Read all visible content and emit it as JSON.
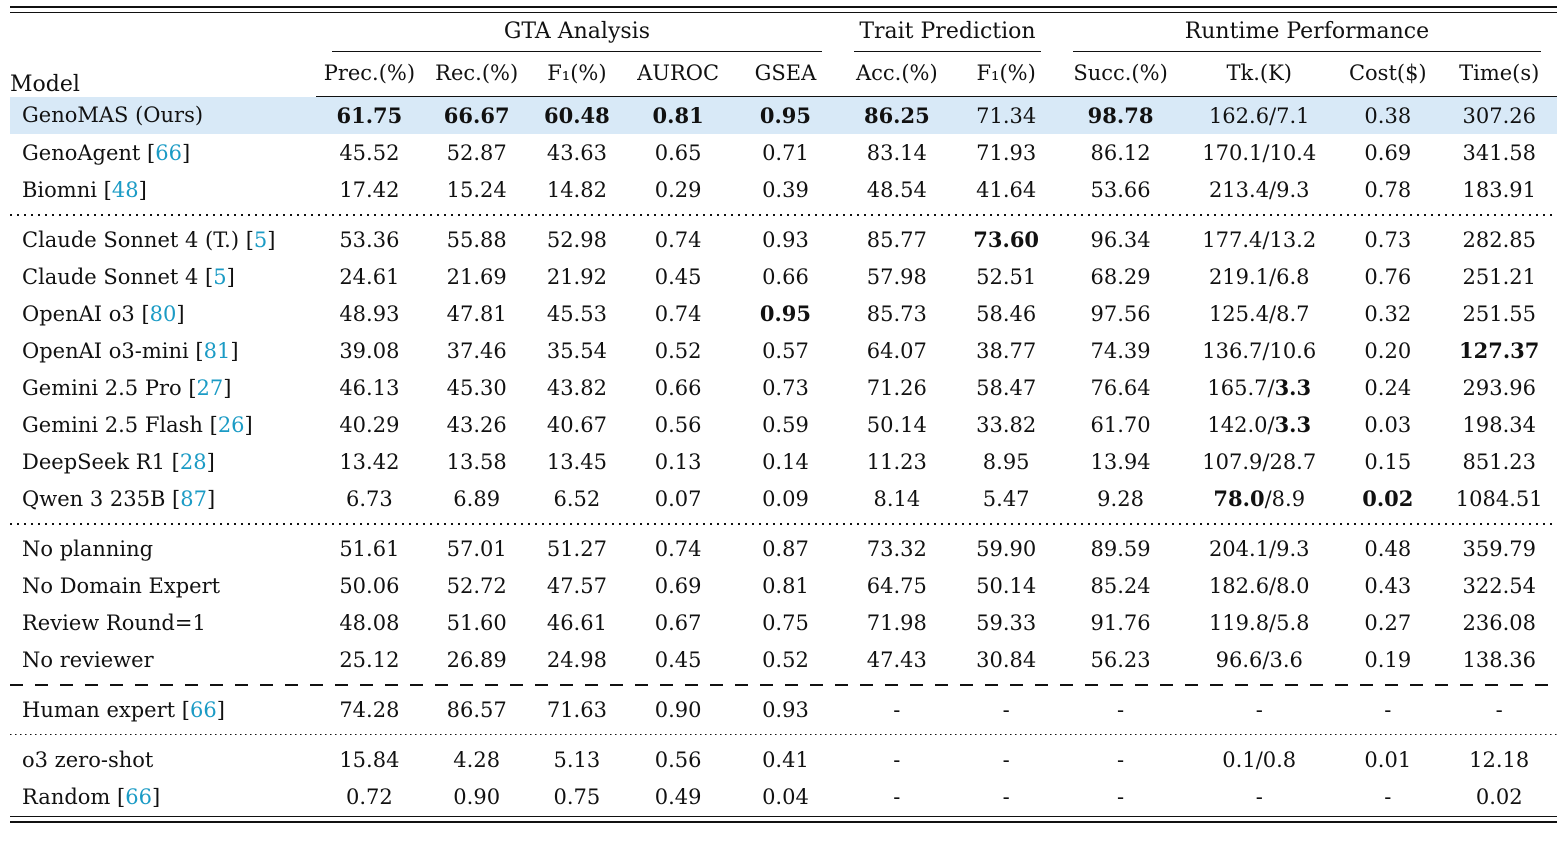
{
  "colors": {
    "citation": "#1b9bc5",
    "highlight_row": "#d8e9f7",
    "text": "#111111",
    "rule": "#111111"
  },
  "table": {
    "header": {
      "model_label": "Model",
      "groups": [
        {
          "label": "GTA Analysis",
          "span": 5
        },
        {
          "label": "Trait Prediction",
          "span": 2
        },
        {
          "label": "Runtime Performance",
          "span": 4
        }
      ],
      "columns": [
        "Prec.(%)",
        "Rec.(%)",
        "F₁(%)",
        "AUROC",
        "GSEA",
        "Acc.(%)",
        "F₁(%)",
        "Succ.(%)",
        "Tk.(K)",
        "Cost($)",
        "Time(s)"
      ]
    },
    "rows": [
      {
        "model": {
          "label": "GenoMAS (Ours)",
          "ref": null
        },
        "highlight": true,
        "cells": [
          {
            "t": "61.75",
            "b": true
          },
          {
            "t": "66.67",
            "b": true
          },
          {
            "t": "60.48",
            "b": true
          },
          {
            "t": "0.81",
            "b": true
          },
          {
            "t": "0.95",
            "b": true
          },
          {
            "t": "86.25",
            "b": true
          },
          "71.34",
          {
            "t": "98.78",
            "b": true
          },
          "162.6/7.1",
          "0.38",
          "307.26"
        ]
      },
      {
        "model": {
          "label": "GenoAgent",
          "ref": "66"
        },
        "cells": [
          "45.52",
          "52.87",
          "43.63",
          "0.65",
          "0.71",
          "83.14",
          "71.93",
          "86.12",
          "170.1/10.4",
          "0.69",
          "341.58"
        ]
      },
      {
        "model": {
          "label": "Biomni",
          "ref": "48"
        },
        "sep_after": "dotted",
        "cells": [
          "17.42",
          "15.24",
          "14.82",
          "0.29",
          "0.39",
          "48.54",
          "41.64",
          "53.66",
          "213.4/9.3",
          "0.78",
          "183.91"
        ]
      },
      {
        "model": {
          "label": "Claude Sonnet 4 (T.)",
          "ref": "5"
        },
        "cells": [
          "53.36",
          "55.88",
          "52.98",
          "0.74",
          "0.93",
          "85.77",
          {
            "t": "73.60",
            "b": true
          },
          "96.34",
          "177.4/13.2",
          "0.73",
          "282.85"
        ]
      },
      {
        "model": {
          "label": "Claude Sonnet 4",
          "ref": "5"
        },
        "cells": [
          "24.61",
          "21.69",
          "21.92",
          "0.45",
          "0.66",
          "57.98",
          "52.51",
          "68.29",
          "219.1/6.8",
          "0.76",
          "251.21"
        ]
      },
      {
        "model": {
          "label": "OpenAI o3",
          "ref": "80"
        },
        "cells": [
          "48.93",
          "47.81",
          "45.53",
          "0.74",
          {
            "t": "0.95",
            "b": true
          },
          "85.73",
          "58.46",
          "97.56",
          "125.4/8.7",
          "0.32",
          "251.55"
        ]
      },
      {
        "model": {
          "label": "OpenAI o3-mini",
          "ref": "81"
        },
        "cells": [
          "39.08",
          "37.46",
          "35.54",
          "0.52",
          "0.57",
          "64.07",
          "38.77",
          "74.39",
          "136.7/10.6",
          "0.20",
          {
            "t": "127.37",
            "b": true
          }
        ]
      },
      {
        "model": {
          "label": "Gemini 2.5 Pro",
          "ref": "27"
        },
        "cells": [
          "46.13",
          "45.30",
          "43.82",
          "0.66",
          "0.73",
          "71.26",
          "58.47",
          "76.64",
          {
            "parts": [
              {
                "t": "165.7/"
              },
              {
                "t": "3.3",
                "b": true
              }
            ]
          },
          "0.24",
          "293.96"
        ]
      },
      {
        "model": {
          "label": "Gemini 2.5 Flash",
          "ref": "26"
        },
        "cells": [
          "40.29",
          "43.26",
          "40.67",
          "0.56",
          "0.59",
          "50.14",
          "33.82",
          "61.70",
          {
            "parts": [
              {
                "t": "142.0/"
              },
              {
                "t": "3.3",
                "b": true
              }
            ]
          },
          "0.03",
          "198.34"
        ]
      },
      {
        "model": {
          "label": "DeepSeek R1",
          "ref": "28"
        },
        "cells": [
          "13.42",
          "13.58",
          "13.45",
          "0.13",
          "0.14",
          "11.23",
          "8.95",
          "13.94",
          "107.9/28.7",
          "0.15",
          "851.23"
        ]
      },
      {
        "model": {
          "label": "Qwen 3 235B",
          "ref": "87"
        },
        "sep_after": "dotted",
        "cells": [
          "6.73",
          "6.89",
          "6.52",
          "0.07",
          "0.09",
          "8.14",
          "5.47",
          "9.28",
          {
            "parts": [
              {
                "t": "78.0",
                "b": true
              },
              {
                "t": "/8.9"
              }
            ]
          },
          {
            "t": "0.02",
            "b": true
          },
          "1084.51"
        ]
      },
      {
        "model": {
          "label": "No planning",
          "ref": null
        },
        "cells": [
          "51.61",
          "57.01",
          "51.27",
          "0.74",
          "0.87",
          "73.32",
          "59.90",
          "89.59",
          "204.1/9.3",
          "0.48",
          "359.79"
        ]
      },
      {
        "model": {
          "label": "No Domain Expert",
          "ref": null
        },
        "cells": [
          "50.06",
          "52.72",
          "47.57",
          "0.69",
          "0.81",
          "64.75",
          "50.14",
          "85.24",
          "182.6/8.0",
          "0.43",
          "322.54"
        ]
      },
      {
        "model": {
          "label": "Review Round=1",
          "ref": null
        },
        "cells": [
          "48.08",
          "51.60",
          "46.61",
          "0.67",
          "0.75",
          "71.98",
          "59.33",
          "91.76",
          "119.8/5.8",
          "0.27",
          "236.08"
        ]
      },
      {
        "model": {
          "label": "No reviewer",
          "ref": null
        },
        "sep_after": "dashed",
        "cells": [
          "25.12",
          "26.89",
          "24.98",
          "0.45",
          "0.52",
          "47.43",
          "30.84",
          "56.23",
          "96.6/3.6",
          "0.19",
          "138.36"
        ]
      },
      {
        "model": {
          "label": "Human expert",
          "ref": "66"
        },
        "sep_after": "dotted-fine",
        "cells": [
          "74.28",
          "86.57",
          "71.63",
          "0.90",
          "0.93",
          "-",
          "-",
          "-",
          "-",
          "-",
          "-"
        ]
      },
      {
        "model": {
          "label": "o3 zero-shot",
          "ref": null
        },
        "cells": [
          "15.84",
          "4.28",
          "5.13",
          "0.56",
          "0.41",
          "-",
          "-",
          "-",
          "0.1/0.8",
          "0.01",
          "12.18"
        ]
      },
      {
        "model": {
          "label": "Random",
          "ref": "66"
        },
        "cells": [
          "0.72",
          "0.90",
          "0.75",
          "0.49",
          "0.04",
          "-",
          "-",
          "-",
          "-",
          "-",
          "0.02"
        ]
      }
    ]
  }
}
